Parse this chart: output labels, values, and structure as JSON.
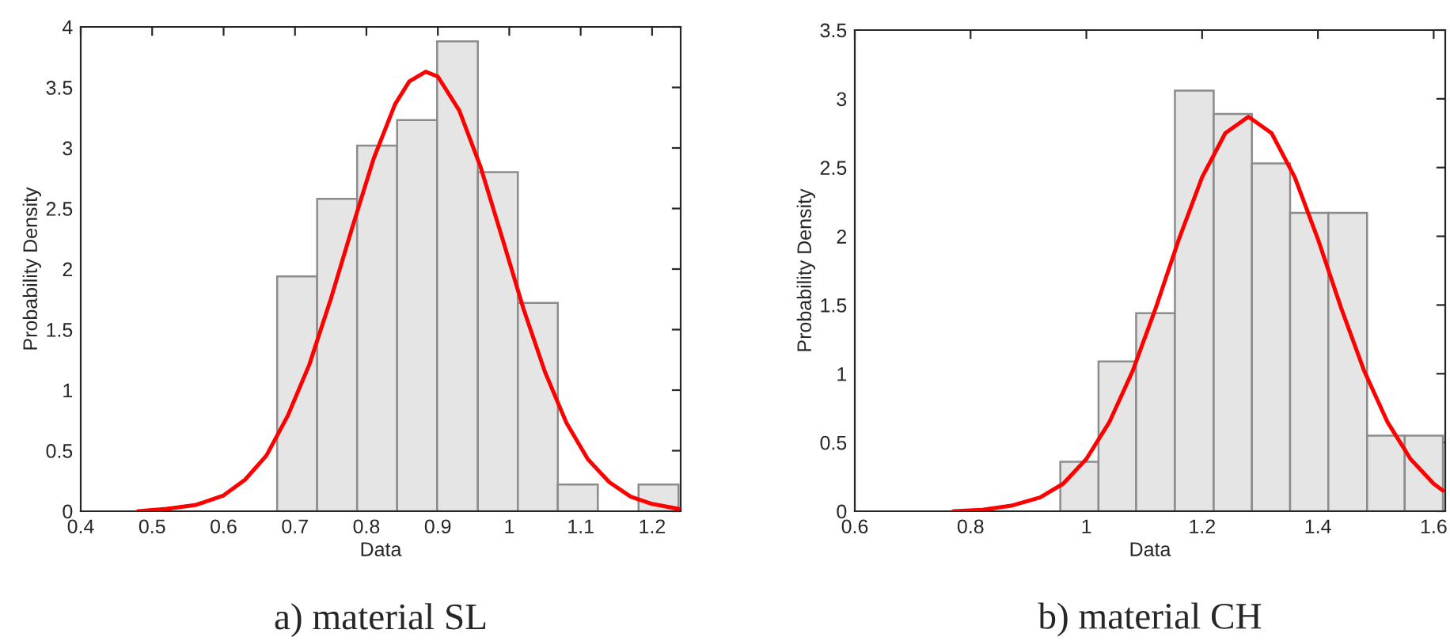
{
  "chart_data": [
    {
      "type": "histogram",
      "xlabel": "Data",
      "ylabel": "Probability Density",
      "annotations": [
        "a) material SL"
      ],
      "bins": [
        0.675,
        0.731,
        0.787,
        0.843,
        0.899,
        0.956,
        1.012,
        1.068,
        1.124,
        1.181,
        1.237
      ],
      "values": [
        1.94,
        2.58,
        3.02,
        3.23,
        3.88,
        2.8,
        1.72,
        0.22,
        0,
        0.22
      ],
      "color": "#e5e5e5",
      "series": [
        {
          "type": "line",
          "color": "#ff0000",
          "x": [
            0.48,
            0.52,
            0.56,
            0.6,
            0.63,
            0.66,
            0.69,
            0.72,
            0.75,
            0.78,
            0.81,
            0.84,
            0.86,
            0.883,
            0.9,
            0.93,
            0.96,
            0.99,
            1.02,
            1.05,
            1.08,
            1.11,
            1.14,
            1.17,
            1.2,
            1.237
          ],
          "values": [
            0.0,
            0.02,
            0.05,
            0.13,
            0.26,
            0.46,
            0.79,
            1.21,
            1.75,
            2.34,
            2.91,
            3.36,
            3.55,
            3.63,
            3.59,
            3.31,
            2.84,
            2.26,
            1.67,
            1.15,
            0.73,
            0.43,
            0.24,
            0.12,
            0.06,
            0.02
          ]
        }
      ],
      "xlim": [
        0.4,
        1.24
      ],
      "xticks": [
        0.4,
        0.5,
        0.6,
        0.7,
        0.8,
        0.9,
        1,
        1.1,
        1.2
      ],
      "ylim": [
        0,
        4
      ],
      "yticks": [
        0,
        0.5,
        1,
        1.5,
        2,
        2.5,
        3,
        3.5,
        4
      ],
      "grid": false,
      "legend": false
    },
    {
      "type": "histogram",
      "xlabel": "Data",
      "ylabel": "Probability Density",
      "annotations": [
        "b) material CH"
      ],
      "bins": [
        0.955,
        1.021,
        1.086,
        1.153,
        1.22,
        1.286,
        1.352,
        1.418,
        1.485,
        1.55,
        1.616
      ],
      "values": [
        0.36,
        1.09,
        1.44,
        3.06,
        2.89,
        2.53,
        2.17,
        2.17,
        0.55,
        0.55
      ],
      "color": "#e5e5e5",
      "series": [
        {
          "type": "line",
          "color": "#ff0000",
          "x": [
            0.77,
            0.82,
            0.87,
            0.92,
            0.96,
            1.0,
            1.04,
            1.08,
            1.12,
            1.16,
            1.2,
            1.24,
            1.28,
            1.32,
            1.36,
            1.4,
            1.44,
            1.48,
            1.52,
            1.56,
            1.6,
            1.616
          ],
          "values": [
            0.0,
            0.01,
            0.04,
            0.1,
            0.2,
            0.38,
            0.65,
            1.02,
            1.48,
            1.98,
            2.43,
            2.75,
            2.87,
            2.75,
            2.43,
            1.98,
            1.48,
            1.02,
            0.65,
            0.38,
            0.2,
            0.15
          ]
        }
      ],
      "xlim": [
        0.6,
        1.62
      ],
      "xticks": [
        0.6,
        0.8,
        1,
        1.2,
        1.4,
        1.6
      ],
      "ylim": [
        0,
        3.5
      ],
      "yticks": [
        0,
        0.5,
        1,
        1.5,
        2,
        2.5,
        3,
        3.5
      ],
      "grid": false,
      "legend": false
    }
  ]
}
